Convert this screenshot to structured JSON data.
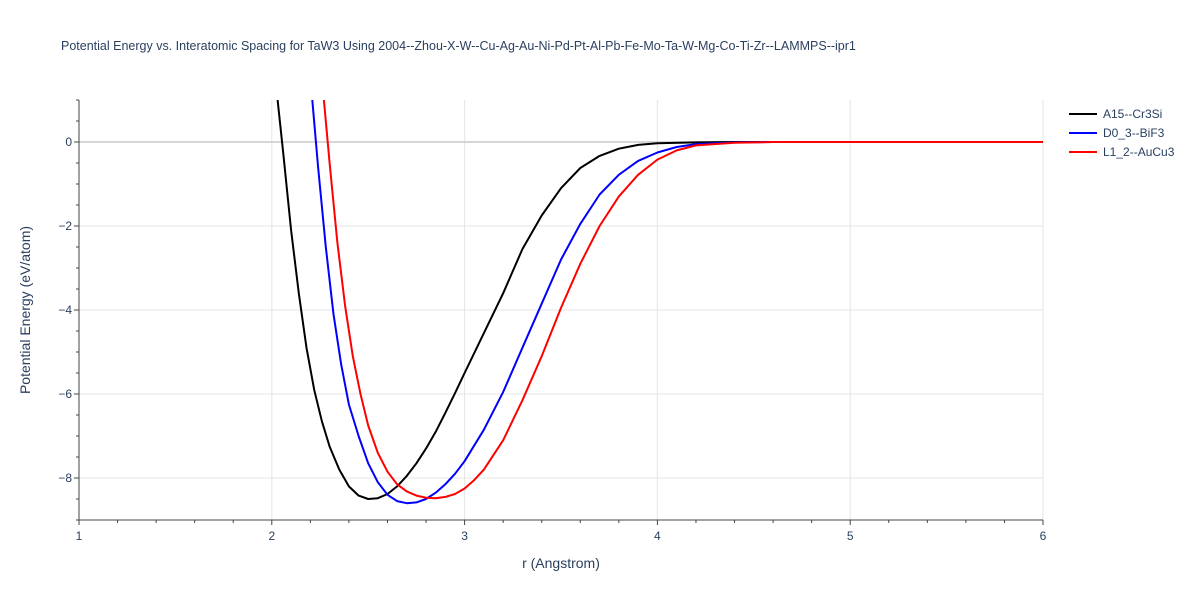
{
  "chart_data": {
    "type": "line",
    "title": "Potential Energy vs. Interatomic Spacing for TaW3 Using 2004--Zhou-X-W--Cu-Ag-Au-Ni-Pd-Pt-Al-Pb-Fe-Mo-Ta-W-Mg-Co-Ti-Zr--LAMMPS--ipr1",
    "xlabel": "r (Angstrom)",
    "ylabel": "Potential Energy (eV/atom)",
    "xlim": [
      1,
      6
    ],
    "ylim": [
      -9,
      1
    ],
    "xticks": [
      "1",
      "2",
      "3",
      "4",
      "5",
      "6"
    ],
    "xtick_values": [
      1,
      2,
      3,
      4,
      5,
      6
    ],
    "yticks": [
      "−8",
      "−6",
      "−4",
      "−2",
      "0"
    ],
    "ytick_values": [
      -8,
      -6,
      -4,
      -2,
      0
    ],
    "grid": true,
    "legend_position": "top-right",
    "series": [
      {
        "name": "A15--Cr3Si",
        "color": "#000000",
        "x": [
          2.03,
          2.06,
          2.1,
          2.14,
          2.18,
          2.22,
          2.26,
          2.3,
          2.35,
          2.4,
          2.45,
          2.5,
          2.55,
          2.6,
          2.65,
          2.7,
          2.75,
          2.8,
          2.85,
          2.9,
          2.95,
          3.0,
          3.1,
          3.2,
          3.3,
          3.4,
          3.5,
          3.6,
          3.7,
          3.8,
          3.9,
          4.0,
          4.2,
          4.4,
          4.6,
          5.0,
          5.5,
          6.0
        ],
        "y": [
          1.0,
          -0.3,
          -2.1,
          -3.6,
          -4.9,
          -5.9,
          -6.65,
          -7.25,
          -7.8,
          -8.2,
          -8.42,
          -8.5,
          -8.48,
          -8.38,
          -8.2,
          -7.95,
          -7.65,
          -7.3,
          -6.9,
          -6.45,
          -5.98,
          -5.5,
          -4.55,
          -3.6,
          -2.55,
          -1.75,
          -1.1,
          -0.62,
          -0.33,
          -0.16,
          -0.07,
          -0.03,
          -0.01,
          0.0,
          0.0,
          0.0,
          0.0,
          0.0
        ]
      },
      {
        "name": "D0_3--BiF3",
        "color": "#0000ff",
        "x": [
          2.21,
          2.24,
          2.28,
          2.32,
          2.36,
          2.4,
          2.45,
          2.5,
          2.55,
          2.6,
          2.65,
          2.7,
          2.75,
          2.8,
          2.85,
          2.9,
          2.95,
          3.0,
          3.1,
          3.2,
          3.3,
          3.4,
          3.5,
          3.6,
          3.7,
          3.8,
          3.9,
          4.0,
          4.1,
          4.2,
          4.4,
          4.6,
          5.0,
          5.5,
          6.0
        ],
        "y": [
          1.0,
          -0.6,
          -2.5,
          -4.1,
          -5.3,
          -6.25,
          -7.0,
          -7.65,
          -8.1,
          -8.4,
          -8.55,
          -8.6,
          -8.58,
          -8.5,
          -8.35,
          -8.15,
          -7.9,
          -7.6,
          -6.85,
          -5.95,
          -4.9,
          -3.85,
          -2.8,
          -1.95,
          -1.25,
          -0.78,
          -0.45,
          -0.25,
          -0.12,
          -0.05,
          -0.01,
          0.0,
          0.0,
          0.0,
          0.0
        ]
      },
      {
        "name": "L1_2--AuCu3",
        "color": "#ff0000",
        "x": [
          2.27,
          2.3,
          2.34,
          2.38,
          2.42,
          2.46,
          2.5,
          2.55,
          2.6,
          2.65,
          2.7,
          2.75,
          2.8,
          2.85,
          2.9,
          2.95,
          3.0,
          3.05,
          3.1,
          3.2,
          3.3,
          3.4,
          3.5,
          3.6,
          3.7,
          3.8,
          3.9,
          4.0,
          4.1,
          4.2,
          4.4,
          4.6,
          5.0,
          5.5,
          6.0
        ],
        "y": [
          1.0,
          -0.5,
          -2.4,
          -3.9,
          -5.1,
          -6.0,
          -6.75,
          -7.4,
          -7.85,
          -8.15,
          -8.32,
          -8.42,
          -8.47,
          -8.48,
          -8.45,
          -8.38,
          -8.25,
          -8.05,
          -7.8,
          -7.1,
          -6.15,
          -5.1,
          -3.95,
          -2.9,
          -2.0,
          -1.3,
          -0.78,
          -0.42,
          -0.2,
          -0.08,
          -0.02,
          0.0,
          0.0,
          0.0,
          0.0
        ]
      }
    ]
  }
}
